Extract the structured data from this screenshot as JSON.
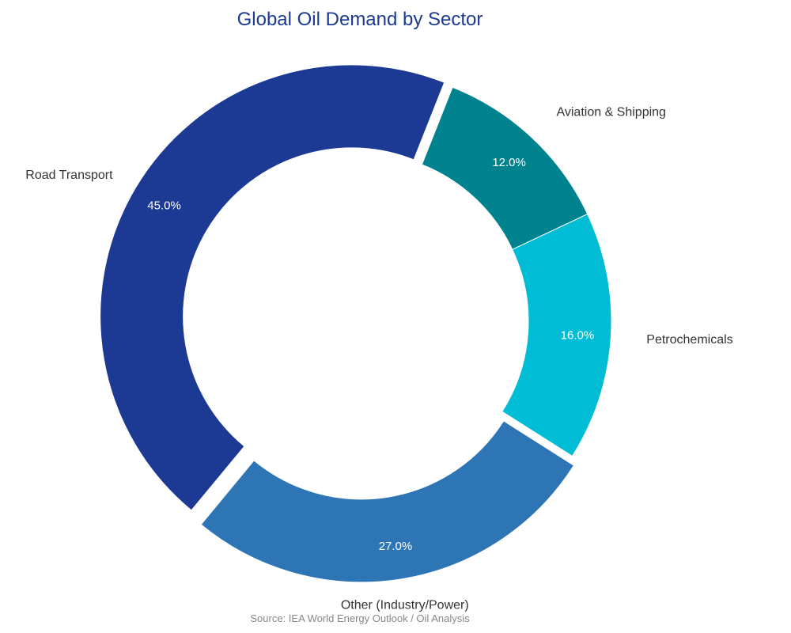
{
  "colors": {
    "title": "#1c3a94",
    "series": [
      "#1c3a94",
      "#00838f",
      "#00bcd4",
      "#2e75b6"
    ]
  },
  "chart_data": {
    "type": "pie",
    "variant": "donut",
    "title": "Global Oil Demand by Sector",
    "source": "Source: IEA World Energy Outlook / Oil Analysis",
    "categories": [
      "Road Transport",
      "Aviation & Shipping",
      "Petrochemicals",
      "Other (Industry/Power)"
    ],
    "values": [
      45.0,
      12.0,
      16.0,
      27.0
    ],
    "value_labels": [
      "45.0%",
      "12.0%",
      "16.0%",
      "27.0%"
    ],
    "exploded": [
      true,
      false,
      false,
      true
    ],
    "legend": "none"
  }
}
